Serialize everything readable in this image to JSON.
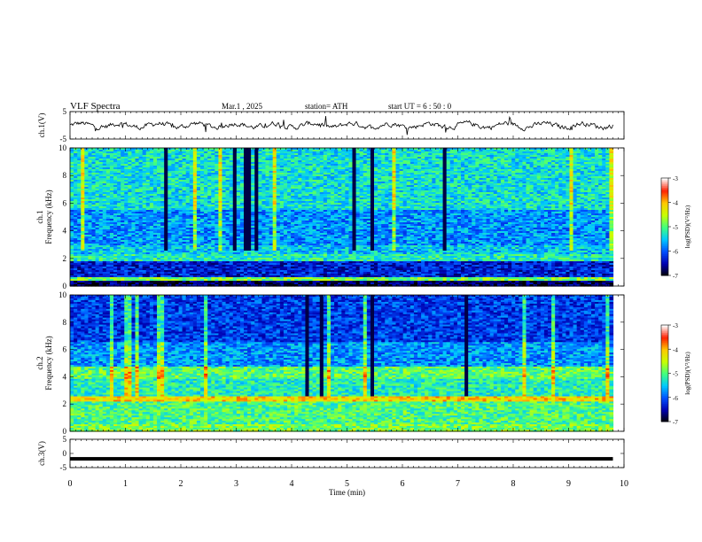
{
  "header": {
    "title": "VLF  Spectra",
    "date": "Mar.1  , 2025",
    "station": "station= ATH",
    "start": "start  UT  =   6  : 50 : 0"
  },
  "chart_data": [
    {
      "type": "line",
      "ylabel": "ch.1(V)",
      "ylim": [
        -5,
        5
      ],
      "yticks": [
        "5",
        "-5"
      ],
      "description_series": "ch.1 waveform amplitude around 0 V"
    },
    {
      "type": "heatmap",
      "ylabel_line1": "ch.1",
      "ylabel_line2": "Frequency  (kHz)",
      "ylim": [
        0,
        10
      ],
      "yticks": [
        "0",
        "2",
        "4",
        "6",
        "8",
        "10"
      ],
      "colorbar_label": "log(PSD)(V²/Hz)",
      "colorbar_ticks": [
        "-3",
        "-4",
        "-5",
        "-6",
        "-7"
      ],
      "colorbar_range": [
        -7,
        -3
      ]
    },
    {
      "type": "heatmap",
      "ylabel_line1": "ch.2",
      "ylabel_line2": "Frequency  (kHz)",
      "ylim": [
        0,
        10
      ],
      "yticks": [
        "0",
        "2",
        "4",
        "6",
        "8",
        "10"
      ],
      "colorbar_label": "log(PSD)(V²/Hz)",
      "colorbar_ticks": [
        "-3",
        "-4",
        "-5",
        "-6",
        "-7"
      ],
      "colorbar_range": [
        -7,
        -3
      ]
    },
    {
      "type": "line",
      "ylabel": "ch.3(V)",
      "ylim": [
        -5,
        5
      ],
      "yticks": [
        "5",
        "0",
        "-5"
      ],
      "description_series": "ch.3 flat signal near -2 V"
    }
  ],
  "xaxis": {
    "label": "Time  (min)",
    "ticks": [
      "0",
      "1",
      "2",
      "3",
      "4",
      "5",
      "6",
      "7",
      "8",
      "9",
      "10"
    ],
    "xlim": [
      0,
      10
    ],
    "data_end": 9.8
  },
  "colors": {
    "scale": [
      "#000000",
      "#0000b0",
      "#0050ff",
      "#00c8ff",
      "#40ff80",
      "#c8ff00",
      "#ffc800",
      "#ff2000",
      "#ffffff"
    ]
  }
}
